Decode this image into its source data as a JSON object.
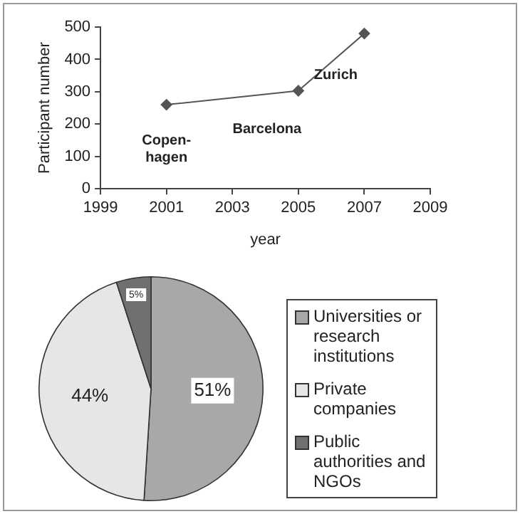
{
  "chart_data": [
    {
      "type": "line",
      "xlabel": "year",
      "ylabel": "Participant number",
      "x": [
        2001,
        2005,
        2007
      ],
      "series": [
        {
          "color": "#555555",
          "values": [
            260,
            303,
            480
          ]
        }
      ],
      "xlim": [
        1999,
        2009
      ],
      "xticks": [
        1999,
        2001,
        2003,
        2005,
        2007,
        2009
      ],
      "ylim": [
        0,
        500
      ],
      "yticks": [
        0,
        100,
        200,
        300,
        400,
        500
      ],
      "marker": "diamond",
      "annotations": [
        {
          "text": "Copen-\nhagen",
          "x": 2001,
          "y": 260
        },
        {
          "text": "Barcelona",
          "x": 2005,
          "y": 303
        },
        {
          "text": "Zurich",
          "x": 2007,
          "y": 480
        }
      ]
    },
    {
      "type": "pie",
      "categories": [
        "Universities or research institutions",
        "Private companies",
        "Public authorities and NGOs"
      ],
      "values": [
        51,
        44,
        5
      ],
      "colors": [
        "#a8a8a8",
        "#e6e6e6",
        "#707070"
      ],
      "value_labels": [
        "51%",
        "44%",
        "5%"
      ],
      "legend": "right"
    }
  ]
}
